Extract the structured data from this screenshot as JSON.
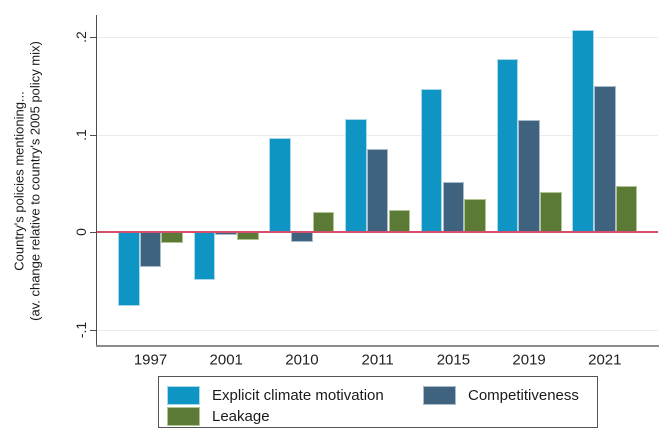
{
  "figure": {
    "y_axis_title_line1": "Country's policies mentioning...",
    "y_axis_title_line2": "(av. change relative to country's 2005 policy mix)"
  },
  "chart_data": {
    "type": "bar",
    "title": "",
    "xlabel": "",
    "ylabel": "Country's policies mentioning... (av. change relative to country's 2005 policy mix)",
    "categories": [
      "1997",
      "2001",
      "2010",
      "2011",
      "2015",
      "2019",
      "2021"
    ],
    "series": [
      {
        "name": "Explicit climate motivation",
        "color": "#0f95c4",
        "edge_color": "#a9d8ea",
        "values": [
          -0.076,
          -0.049,
          0.096,
          0.116,
          0.147,
          0.177,
          0.207
        ]
      },
      {
        "name": "Competitiveness",
        "color": "#3f637f",
        "edge_color": "#a9bccb",
        "values": [
          -0.036,
          -0.003,
          -0.01,
          0.085,
          0.051,
          0.115,
          0.15
        ]
      },
      {
        "name": "Leakage",
        "color": "#5a7a35",
        "edge_color": "#b3c493",
        "values": [
          -0.011,
          -0.008,
          0.021,
          0.023,
          0.034,
          0.041,
          0.047
        ]
      }
    ],
    "yticks": [
      -0.1,
      0,
      0.1,
      0.2
    ],
    "ytick_labels": [
      "-.1",
      "0",
      ".1",
      ".2"
    ],
    "ylim": [
      -0.117,
      0.2225
    ],
    "zero_reference_line": true,
    "zero_line_color": "#d44f6d",
    "grid": true,
    "gridline_color": "#ebebeb",
    "legend_position": "bottom"
  }
}
